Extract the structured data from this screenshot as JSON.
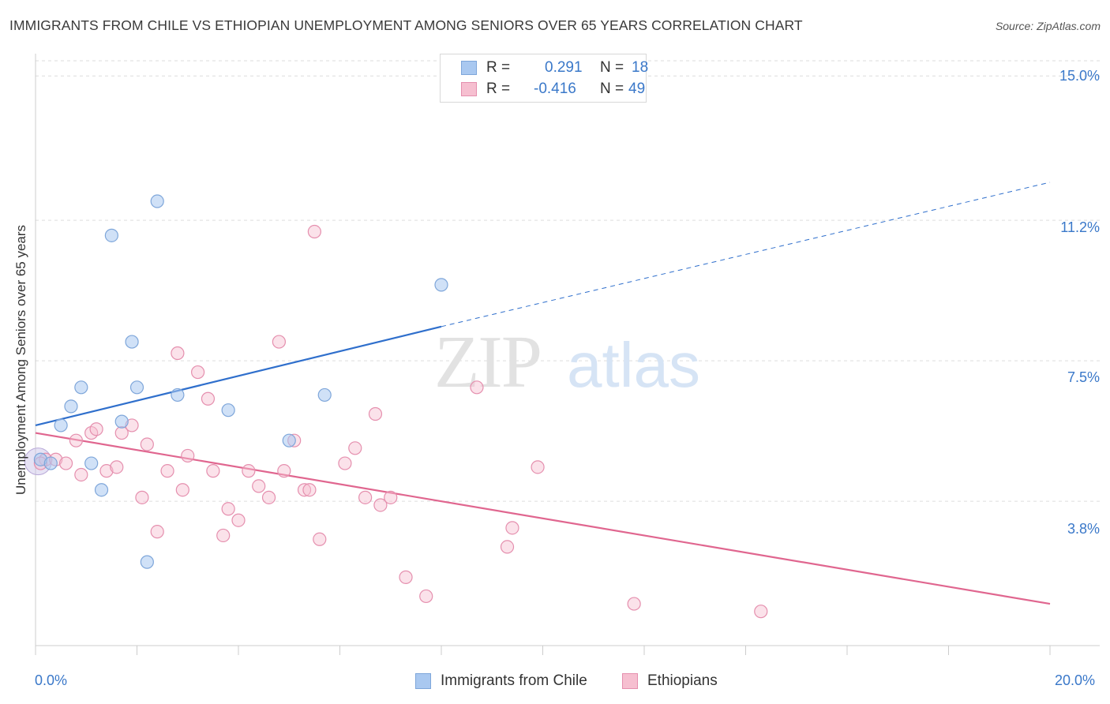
{
  "title": "IMMIGRANTS FROM CHILE VS ETHIOPIAN UNEMPLOYMENT AMONG SENIORS OVER 65 YEARS CORRELATION CHART",
  "source": "Source: ZipAtlas.com",
  "watermark": {
    "zip": "ZIP",
    "atlas": "atlas"
  },
  "legend": {
    "rows": [
      {
        "r_label": "R =",
        "r_value": "0.291",
        "n_label": "N =",
        "n_value": "18",
        "color": "#a9c8f0",
        "border": "#7ea6da"
      },
      {
        "r_label": "R =",
        "r_value": "-0.416",
        "n_label": "N =",
        "n_value": "49",
        "color": "#f6bfd0",
        "border": "#e58fae"
      }
    ]
  },
  "bottom_legend": [
    {
      "label": "Immigrants from Chile",
      "color": "#a9c8f0",
      "border": "#7ea6da"
    },
    {
      "label": "Ethiopians",
      "color": "#f6bfd0",
      "border": "#e58fae"
    }
  ],
  "colors": {
    "blue": "#2f6fcc",
    "pink": "#e0668f",
    "tick_text": "#3a78c9",
    "grid": "#dddddd"
  },
  "chart_data": {
    "type": "scatter",
    "title": "IMMIGRANTS FROM CHILE VS ETHIOPIAN UNEMPLOYMENT AMONG SENIORS OVER 65 YEARS CORRELATION CHART",
    "xlabel": "",
    "ylabel": "Unemployment Among Seniors over 65 years",
    "xlim": [
      0,
      20
    ],
    "ylim": [
      0,
      15.4
    ],
    "x_tick_labels": [
      "0.0%",
      "20.0%"
    ],
    "y_ticks": [
      3.8,
      7.5,
      11.2,
      15.0
    ],
    "y_tick_labels": [
      "3.8%",
      "7.5%",
      "11.2%",
      "15.0%"
    ],
    "grid": true,
    "legend_position": "top-center",
    "series": [
      {
        "name": "Immigrants from Chile",
        "color": "#a9c8f0",
        "points": [
          [
            0.1,
            4.9
          ],
          [
            0.3,
            4.8
          ],
          [
            0.5,
            5.8
          ],
          [
            0.7,
            6.3
          ],
          [
            0.9,
            6.8
          ],
          [
            1.1,
            4.8
          ],
          [
            1.3,
            4.1
          ],
          [
            1.5,
            10.8
          ],
          [
            1.7,
            5.9
          ],
          [
            1.9,
            8.0
          ],
          [
            2.0,
            6.8
          ],
          [
            2.2,
            2.2
          ],
          [
            2.4,
            11.7
          ],
          [
            2.8,
            6.6
          ],
          [
            3.8,
            6.2
          ],
          [
            5.0,
            5.4
          ],
          [
            5.7,
            6.6
          ],
          [
            8.0,
            9.5
          ]
        ],
        "trend": {
          "x": [
            0,
            8.0
          ],
          "y": [
            5.8,
            8.4
          ],
          "extended_to": [
            20,
            12.2
          ],
          "dashed_extension": true
        }
      },
      {
        "name": "Ethiopians",
        "color": "#f6bfd0",
        "points": [
          [
            0.2,
            4.9
          ],
          [
            0.4,
            4.9
          ],
          [
            0.6,
            4.8
          ],
          [
            0.8,
            5.4
          ],
          [
            0.9,
            4.5
          ],
          [
            1.1,
            5.6
          ],
          [
            1.2,
            5.7
          ],
          [
            1.4,
            4.6
          ],
          [
            1.6,
            4.7
          ],
          [
            1.7,
            5.6
          ],
          [
            1.9,
            5.8
          ],
          [
            2.1,
            3.9
          ],
          [
            2.2,
            5.3
          ],
          [
            2.4,
            3.0
          ],
          [
            2.6,
            4.6
          ],
          [
            2.8,
            7.7
          ],
          [
            2.9,
            4.1
          ],
          [
            3.0,
            5.0
          ],
          [
            3.2,
            7.2
          ],
          [
            3.4,
            6.5
          ],
          [
            3.5,
            4.6
          ],
          [
            3.7,
            2.9
          ],
          [
            3.8,
            3.6
          ],
          [
            4.0,
            3.3
          ],
          [
            4.2,
            4.6
          ],
          [
            4.4,
            4.2
          ],
          [
            4.6,
            3.9
          ],
          [
            4.8,
            8.0
          ],
          [
            4.9,
            4.6
          ],
          [
            5.1,
            5.4
          ],
          [
            5.3,
            4.1
          ],
          [
            5.4,
            4.1
          ],
          [
            5.5,
            10.9
          ],
          [
            5.6,
            2.8
          ],
          [
            6.1,
            4.8
          ],
          [
            6.3,
            5.2
          ],
          [
            6.5,
            3.9
          ],
          [
            6.7,
            6.1
          ],
          [
            6.8,
            3.7
          ],
          [
            7.0,
            3.9
          ],
          [
            7.3,
            1.8
          ],
          [
            7.7,
            1.3
          ],
          [
            8.7,
            6.8
          ],
          [
            9.3,
            2.6
          ],
          [
            9.4,
            3.1
          ],
          [
            9.9,
            4.7
          ],
          [
            11.8,
            1.1
          ],
          [
            14.3,
            0.9
          ],
          [
            0.1,
            4.8
          ]
        ],
        "trend": {
          "x": [
            0,
            20
          ],
          "y": [
            5.6,
            1.1
          ]
        }
      }
    ]
  }
}
